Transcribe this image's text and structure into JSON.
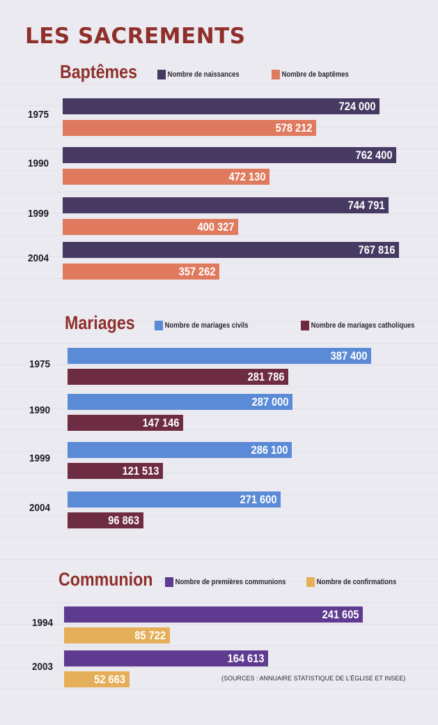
{
  "title": "LES SACREMENTS",
  "source": "(SOURCES : ANNUAIRE STATISTIQUE DE L'ÉGLISE ET INSEE)",
  "colors": {
    "naissances": "#463a63",
    "baptemes": "#e07a5e",
    "civils": "#5b8ad6",
    "catholiques": "#6e2c42",
    "communions": "#5e3a90",
    "confirmations": "#e5ae58",
    "title": "#8e2f2a"
  },
  "chart_data": [
    {
      "type": "bar",
      "title": "Baptêmes",
      "orientation": "horizontal",
      "categories": [
        "1975",
        "1990",
        "1999",
        "2004"
      ],
      "series": [
        {
          "name": "Nombre de naissances",
          "values": [
            724000,
            762400,
            744791,
            767816
          ],
          "labels": [
            "724 000",
            "762 400",
            "744 791",
            "767 816"
          ]
        },
        {
          "name": "Nombre de baptêmes",
          "values": [
            578212,
            472130,
            400327,
            357262
          ],
          "labels": [
            "578 212",
            "472 130",
            "400 327",
            "357 262"
          ]
        }
      ],
      "scale_max": 830000
    },
    {
      "type": "bar",
      "title": "Mariages",
      "orientation": "horizontal",
      "categories": [
        "1975",
        "1990",
        "1999",
        "2004"
      ],
      "series": [
        {
          "name": "Nombre de mariages civils",
          "values": [
            387400,
            287000,
            286100,
            271600
          ],
          "labels": [
            "387 400",
            "287 000",
            "286 100",
            "271 600"
          ]
        },
        {
          "name": "Nombre de mariages catholiques",
          "values": [
            281786,
            147146,
            121513,
            96863
          ],
          "labels": [
            "281 786",
            "147 146",
            "121 513",
            "96 863"
          ]
        }
      ],
      "scale_max": 420000
    },
    {
      "type": "bar",
      "title": "Communion",
      "orientation": "horizontal",
      "categories": [
        "1994",
        "2003"
      ],
      "series": [
        {
          "name": "Nombre de premières communions",
          "values": [
            241605,
            164613
          ],
          "labels": [
            "241 605",
            "164 613"
          ]
        },
        {
          "name": "Nombre de confirmations",
          "values": [
            85722,
            52663
          ],
          "labels": [
            "85 722",
            "52 663"
          ]
        }
      ],
      "scale_max": 265000
    }
  ]
}
